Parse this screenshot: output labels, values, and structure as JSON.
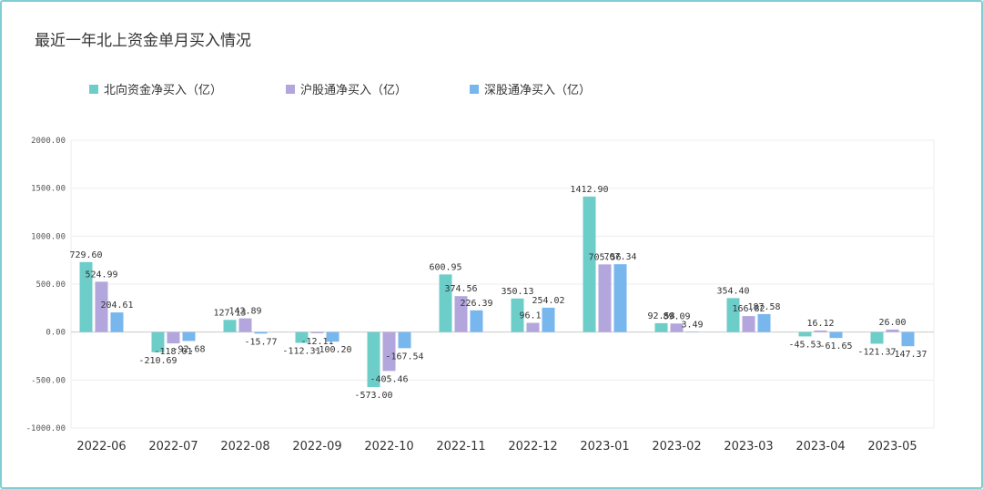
{
  "chart_data": {
    "type": "bar",
    "title": "最近一年北上资金单月买入情况",
    "categories": [
      "2022-06",
      "2022-07",
      "2022-08",
      "2022-09",
      "2022-10",
      "2022-11",
      "2022-12",
      "2023-01",
      "2023-02",
      "2023-03",
      "2023-04",
      "2023-05"
    ],
    "series": [
      {
        "name": "北向资金净买入（亿）",
        "color": "#6dcdc9",
        "values": [
          729.6,
          -210.69,
          127.13,
          -112.31,
          -573.0,
          600.95,
          350.13,
          1412.9,
          92.58,
          354.4,
          -45.53,
          -121.37
        ]
      },
      {
        "name": "沪股通净买入（亿）",
        "color": "#b3a6dc",
        "values": [
          524.99,
          -118.01,
          142.89,
          -12.11,
          -405.46,
          374.56,
          96.11,
          705.56,
          89.09,
          166.82,
          16.12,
          26.0
        ]
      },
      {
        "name": "深股通净买入（亿）",
        "color": "#78b6ee",
        "values": [
          204.61,
          -92.68,
          -15.77,
          -100.2,
          -167.54,
          226.39,
          254.02,
          707.34,
          3.49,
          187.58,
          -61.65,
          -147.37
        ]
      }
    ],
    "ylim": [
      -1000,
      2000
    ],
    "yticks": [
      "2000.00",
      "1500.00",
      "1000.00",
      "500.00",
      "0.00",
      "-500.00",
      "-1000.00"
    ],
    "ytick_values": [
      2000,
      1500,
      1000,
      500,
      0,
      -500,
      -1000
    ],
    "grid": true,
    "legend_position": "top-left"
  }
}
